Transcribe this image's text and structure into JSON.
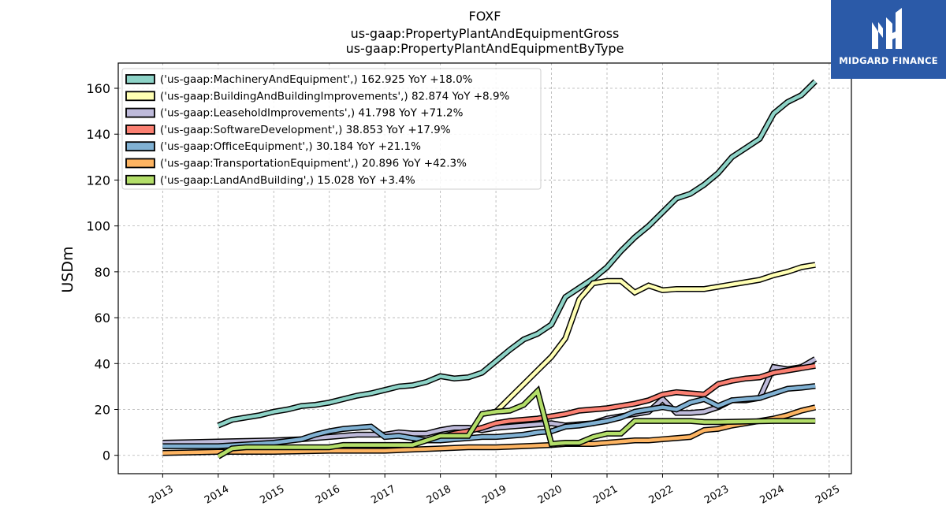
{
  "chart_data": {
    "type": "line",
    "title_lines": [
      "FOXF",
      "us-gaap:PropertyPlantAndEquipmentGross",
      "us-gaap:PropertyPlantAndEquipmentByType"
    ],
    "ylabel": "USDm",
    "xlim": [
      2012.2,
      2025.4
    ],
    "ylim": [
      -8,
      171
    ],
    "yticks": [
      0,
      20,
      40,
      60,
      80,
      100,
      120,
      140,
      160
    ],
    "xticks": [
      2013,
      2014,
      2015,
      2016,
      2017,
      2018,
      2019,
      2020,
      2021,
      2022,
      2023,
      2024,
      2025
    ],
    "grid": true,
    "legend_position": "upper-left",
    "series": [
      {
        "name": "('us-gaap:MachineryAndEquipment',) 162.925 YoY +18.0%",
        "color": "#8dd3c7",
        "points": [
          [
            2014.0,
            13
          ],
          [
            2014.25,
            15.5
          ],
          [
            2014.5,
            16.5
          ],
          [
            2014.75,
            17.5
          ],
          [
            2015.0,
            19.0
          ],
          [
            2015.25,
            20.0
          ],
          [
            2015.5,
            21.5
          ],
          [
            2015.75,
            22.0
          ],
          [
            2016.0,
            23.0
          ],
          [
            2016.25,
            24.5
          ],
          [
            2016.5,
            26.0
          ],
          [
            2016.75,
            27.0
          ],
          [
            2017.0,
            28.5
          ],
          [
            2017.25,
            30.0
          ],
          [
            2017.5,
            30.5
          ],
          [
            2017.75,
            32.0
          ],
          [
            2018.0,
            34.5
          ],
          [
            2018.25,
            33.5
          ],
          [
            2018.5,
            34.0
          ],
          [
            2018.75,
            36.0
          ],
          [
            2019.0,
            41.0
          ],
          [
            2019.25,
            46.0
          ],
          [
            2019.5,
            50.5
          ],
          [
            2019.75,
            53.0
          ],
          [
            2020.0,
            57.0
          ],
          [
            2020.25,
            69.0
          ],
          [
            2020.5,
            73.0
          ],
          [
            2020.75,
            77.0
          ],
          [
            2021.0,
            82.0
          ],
          [
            2021.25,
            89.0
          ],
          [
            2021.5,
            95.0
          ],
          [
            2021.75,
            100.0
          ],
          [
            2022.0,
            106.0
          ],
          [
            2022.25,
            112.0
          ],
          [
            2022.5,
            114.0
          ],
          [
            2022.75,
            118.0
          ],
          [
            2023.0,
            123.0
          ],
          [
            2023.25,
            130.0
          ],
          [
            2023.5,
            134.0
          ],
          [
            2023.75,
            138.0
          ],
          [
            2024.0,
            149.0
          ],
          [
            2024.25,
            154.0
          ],
          [
            2024.5,
            157.0
          ],
          [
            2024.75,
            163.0
          ]
        ]
      },
      {
        "name": "('us-gaap:BuildingAndBuildingImprovements',) 82.874 YoY +8.9%",
        "color": "#ffffb3",
        "points": [
          [
            2019.0,
            19.0
          ],
          [
            2019.25,
            25.0
          ],
          [
            2019.5,
            31.0
          ],
          [
            2019.75,
            37.0
          ],
          [
            2020.0,
            43.0
          ],
          [
            2020.25,
            51.0
          ],
          [
            2020.5,
            68.0
          ],
          [
            2020.75,
            75.0
          ],
          [
            2021.0,
            76.0
          ],
          [
            2021.25,
            76.0
          ],
          [
            2021.5,
            71.0
          ],
          [
            2021.75,
            74.0
          ],
          [
            2022.0,
            72.0
          ],
          [
            2022.25,
            72.5
          ],
          [
            2022.5,
            72.5
          ],
          [
            2022.75,
            72.5
          ],
          [
            2023.0,
            73.5
          ],
          [
            2023.25,
            74.5
          ],
          [
            2023.5,
            75.5
          ],
          [
            2023.75,
            76.5
          ],
          [
            2024.0,
            78.5
          ],
          [
            2024.25,
            80.0
          ],
          [
            2024.5,
            82.0
          ],
          [
            2024.75,
            83.0
          ]
        ]
      },
      {
        "name": "('us-gaap:LeaseholdImprovements',) 41.798 YoY +71.2%",
        "color": "#bebada",
        "points": [
          [
            2013.0,
            5.5
          ],
          [
            2014.0,
            6.0
          ],
          [
            2015.0,
            6.5
          ],
          [
            2015.5,
            7.0
          ],
          [
            2016.0,
            8.0
          ],
          [
            2016.5,
            9.0
          ],
          [
            2017.0,
            9.0
          ],
          [
            2017.25,
            10.0
          ],
          [
            2017.5,
            9.5
          ],
          [
            2017.75,
            9.5
          ],
          [
            2018.0,
            11.0
          ],
          [
            2018.25,
            12.0
          ],
          [
            2018.5,
            12.0
          ],
          [
            2018.75,
            11.0
          ],
          [
            2019.0,
            12.0
          ],
          [
            2019.25,
            12.5
          ],
          [
            2019.5,
            13.0
          ],
          [
            2019.75,
            13.5
          ],
          [
            2020.0,
            14.0
          ],
          [
            2020.25,
            13.0
          ],
          [
            2020.5,
            13.5
          ],
          [
            2020.75,
            14.0
          ],
          [
            2021.0,
            16.0
          ],
          [
            2021.25,
            17.0
          ],
          [
            2021.5,
            18.0
          ],
          [
            2021.75,
            19.0
          ],
          [
            2022.0,
            24.5
          ],
          [
            2022.25,
            18.5
          ],
          [
            2022.5,
            18.5
          ],
          [
            2022.75,
            19.0
          ],
          [
            2023.0,
            21.0
          ],
          [
            2023.25,
            24.0
          ],
          [
            2023.5,
            24.0
          ],
          [
            2023.75,
            25.0
          ],
          [
            2024.0,
            38.5
          ],
          [
            2024.25,
            37.5
          ],
          [
            2024.5,
            38.5
          ],
          [
            2024.75,
            42.0
          ]
        ]
      },
      {
        "name": "('us-gaap:SoftwareDevelopment',) 38.853 YoY +17.9%",
        "color": "#fb8072",
        "points": [
          [
            2017.5,
            5.0
          ],
          [
            2017.75,
            6.5
          ],
          [
            2018.0,
            8.0
          ],
          [
            2018.25,
            9.5
          ],
          [
            2018.5,
            10.5
          ],
          [
            2018.75,
            12.0
          ],
          [
            2019.0,
            14.0
          ],
          [
            2019.25,
            15.0
          ],
          [
            2019.5,
            15.5
          ],
          [
            2019.75,
            16.0
          ],
          [
            2020.0,
            17.0
          ],
          [
            2020.25,
            18.0
          ],
          [
            2020.5,
            19.5
          ],
          [
            2020.75,
            20.0
          ],
          [
            2021.0,
            20.5
          ],
          [
            2021.25,
            21.5
          ],
          [
            2021.5,
            22.5
          ],
          [
            2021.75,
            24.0
          ],
          [
            2022.0,
            26.5
          ],
          [
            2022.25,
            27.5
          ],
          [
            2022.5,
            27.0
          ],
          [
            2022.75,
            26.5
          ],
          [
            2023.0,
            31.0
          ],
          [
            2023.25,
            32.5
          ],
          [
            2023.5,
            33.5
          ],
          [
            2023.75,
            34.0
          ],
          [
            2024.0,
            36.0
          ],
          [
            2024.25,
            37.0
          ],
          [
            2024.5,
            38.0
          ],
          [
            2024.75,
            39.0
          ]
        ]
      },
      {
        "name": "('us-gaap:OfficeEquipment',) 30.184 YoY +21.1%",
        "color": "#80b1d3",
        "points": [
          [
            2013.0,
            4.0
          ],
          [
            2014.0,
            4.0
          ],
          [
            2015.0,
            5.5
          ],
          [
            2015.5,
            7.0
          ],
          [
            2015.75,
            9.0
          ],
          [
            2016.0,
            10.5
          ],
          [
            2016.25,
            11.5
          ],
          [
            2016.5,
            12.0
          ],
          [
            2016.75,
            12.5
          ],
          [
            2017.0,
            8.0
          ],
          [
            2017.25,
            8.5
          ],
          [
            2017.5,
            7.5
          ],
          [
            2017.75,
            6.5
          ],
          [
            2018.0,
            6.5
          ],
          [
            2018.25,
            7.0
          ],
          [
            2018.5,
            7.5
          ],
          [
            2018.75,
            8.0
          ],
          [
            2019.0,
            8.0
          ],
          [
            2019.25,
            8.5
          ],
          [
            2019.5,
            9.0
          ],
          [
            2019.75,
            10.0
          ],
          [
            2020.0,
            10.5
          ],
          [
            2020.25,
            12.5
          ],
          [
            2020.5,
            13.0
          ],
          [
            2020.75,
            14.0
          ],
          [
            2021.0,
            15.0
          ],
          [
            2021.25,
            16.5
          ],
          [
            2021.5,
            19.0
          ],
          [
            2021.75,
            20.0
          ],
          [
            2022.0,
            21.0
          ],
          [
            2022.25,
            20.0
          ],
          [
            2022.5,
            23.0
          ],
          [
            2022.75,
            24.5
          ],
          [
            2023.0,
            21.5
          ],
          [
            2023.25,
            24.0
          ],
          [
            2023.5,
            24.5
          ],
          [
            2023.75,
            25.0
          ],
          [
            2024.0,
            27.0
          ],
          [
            2024.25,
            29.0
          ],
          [
            2024.5,
            29.5
          ],
          [
            2024.75,
            30.2
          ]
        ]
      },
      {
        "name": "('us-gaap:TransportationEquipment',) 20.896 YoY +42.3%",
        "color": "#fdb462",
        "points": [
          [
            2013.0,
            1.0
          ],
          [
            2014.0,
            1.5
          ],
          [
            2015.0,
            1.5
          ],
          [
            2016.0,
            2.0
          ],
          [
            2017.0,
            2.0
          ],
          [
            2017.5,
            2.5
          ],
          [
            2018.0,
            3.0
          ],
          [
            2018.5,
            3.5
          ],
          [
            2019.0,
            3.5
          ],
          [
            2019.5,
            4.0
          ],
          [
            2020.0,
            4.5
          ],
          [
            2020.25,
            5.0
          ],
          [
            2020.5,
            5.0
          ],
          [
            2020.75,
            5.0
          ],
          [
            2021.0,
            5.5
          ],
          [
            2021.25,
            6.0
          ],
          [
            2021.5,
            6.5
          ],
          [
            2021.75,
            6.5
          ],
          [
            2022.0,
            7.0
          ],
          [
            2022.25,
            7.5
          ],
          [
            2022.5,
            8.0
          ],
          [
            2022.75,
            11.0
          ],
          [
            2023.0,
            11.5
          ],
          [
            2023.25,
            13.0
          ],
          [
            2023.5,
            14.0
          ],
          [
            2023.75,
            15.0
          ],
          [
            2024.0,
            16.0
          ],
          [
            2024.25,
            17.5
          ],
          [
            2024.5,
            19.5
          ],
          [
            2024.75,
            20.9
          ]
        ]
      },
      {
        "name": "('us-gaap:LandAndBuilding',) 15.028 YoY +3.4%",
        "color": "#b3de69",
        "points": [
          [
            2014.0,
            -0.5
          ],
          [
            2014.25,
            3.0
          ],
          [
            2014.5,
            3.5
          ],
          [
            2015.0,
            3.5
          ],
          [
            2016.0,
            3.5
          ],
          [
            2016.25,
            4.5
          ],
          [
            2017.0,
            4.5
          ],
          [
            2017.5,
            4.5
          ],
          [
            2018.0,
            8.5
          ],
          [
            2018.5,
            8.5
          ],
          [
            2018.75,
            18.0
          ],
          [
            2019.0,
            19.0
          ],
          [
            2019.25,
            19.5
          ],
          [
            2019.5,
            22.0
          ],
          [
            2019.75,
            28.0
          ],
          [
            2020.0,
            5.0
          ],
          [
            2020.25,
            5.5
          ],
          [
            2020.5,
            5.5
          ],
          [
            2020.75,
            8.0
          ],
          [
            2021.0,
            9.5
          ],
          [
            2021.25,
            9.5
          ],
          [
            2021.5,
            15.0
          ],
          [
            2022.0,
            15.0
          ],
          [
            2022.25,
            15.0
          ],
          [
            2022.5,
            15.0
          ],
          [
            2022.75,
            14.5
          ],
          [
            2023.0,
            14.5
          ],
          [
            2024.0,
            15.0
          ],
          [
            2024.75,
            15.0
          ]
        ]
      }
    ]
  },
  "logo": {
    "text": "MIDGARD FINANCE"
  }
}
